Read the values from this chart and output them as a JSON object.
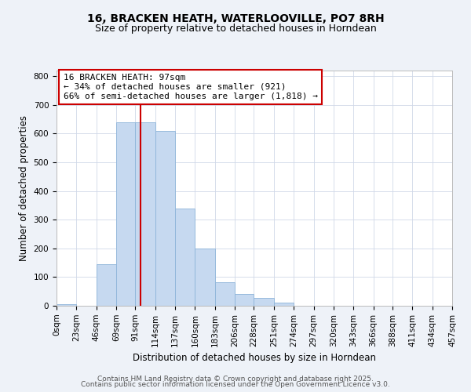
{
  "title": "16, BRACKEN HEATH, WATERLOOVILLE, PO7 8RH",
  "subtitle": "Size of property relative to detached houses in Horndean",
  "xlabel": "Distribution of detached houses by size in Horndean",
  "ylabel": "Number of detached properties",
  "bin_edges": [
    0,
    23,
    46,
    69,
    91,
    114,
    137,
    160,
    183,
    206,
    228,
    251,
    274,
    297,
    320,
    343,
    366,
    388,
    411,
    434,
    457
  ],
  "bin_labels": [
    "0sqm",
    "23sqm",
    "46sqm",
    "69sqm",
    "91sqm",
    "114sqm",
    "137sqm",
    "160sqm",
    "183sqm",
    "206sqm",
    "228sqm",
    "251sqm",
    "274sqm",
    "297sqm",
    "320sqm",
    "343sqm",
    "366sqm",
    "388sqm",
    "411sqm",
    "434sqm",
    "457sqm"
  ],
  "counts": [
    5,
    0,
    145,
    640,
    640,
    610,
    340,
    200,
    83,
    42,
    27,
    10,
    0,
    0,
    0,
    0,
    0,
    0,
    0,
    0
  ],
  "bar_color": "#c6d9f0",
  "bar_edge_color": "#8db4d9",
  "property_value": 97,
  "vline_color": "#cc0000",
  "annotation_line1": "16 BRACKEN HEATH: 97sqm",
  "annotation_line2": "← 34% of detached houses are smaller (921)",
  "annotation_line3": "66% of semi-detached houses are larger (1,818) →",
  "annotation_box_edgecolor": "#cc0000",
  "annotation_box_facecolor": "#ffffff",
  "ylim": [
    0,
    820
  ],
  "yticks": [
    0,
    100,
    200,
    300,
    400,
    500,
    600,
    700,
    800
  ],
  "footer1": "Contains HM Land Registry data © Crown copyright and database right 2025.",
  "footer2": "Contains public sector information licensed under the Open Government Licence v3.0.",
  "bg_color": "#eef2f8",
  "plot_bg_color": "#ffffff",
  "title_fontsize": 10,
  "subtitle_fontsize": 9,
  "axis_label_fontsize": 8.5,
  "tick_fontsize": 7.5,
  "annotation_fontsize": 8,
  "footer_fontsize": 6.5
}
